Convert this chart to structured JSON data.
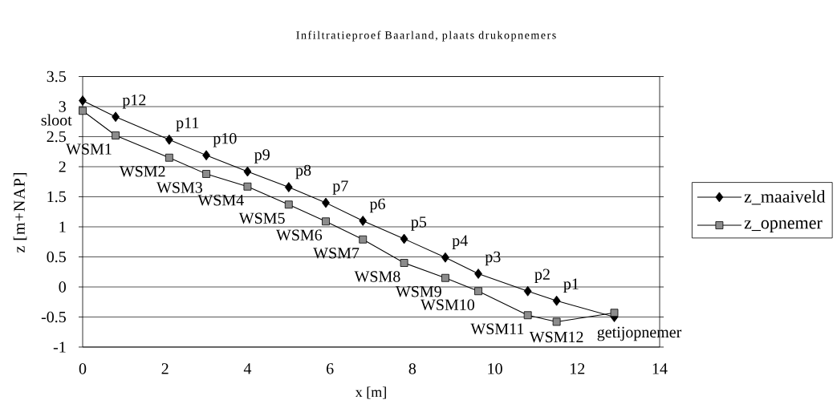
{
  "chart_data": {
    "type": "line",
    "title": "Infiltratieproef Baarland, plaats drukopnemers",
    "xlabel": "x [m]",
    "ylabel": "z [m+NAP]",
    "x": [
      0,
      0.8,
      2.1,
      3.0,
      4.0,
      5.0,
      5.9,
      6.8,
      7.8,
      8.8,
      9.6,
      10.8,
      11.5,
      12.9
    ],
    "series": [
      {
        "name": "z_maaiveld",
        "color": "#000000",
        "marker": "diamond",
        "values": [
          3.1,
          2.83,
          2.45,
          2.19,
          1.92,
          1.66,
          1.4,
          1.1,
          0.8,
          0.49,
          0.22,
          -0.07,
          -0.23,
          -0.5
        ]
      },
      {
        "name": "z_opnemer",
        "color": "#000000",
        "marker": "square",
        "values": [
          2.93,
          2.52,
          2.15,
          1.88,
          1.67,
          1.37,
          1.09,
          0.79,
          0.4,
          0.15,
          -0.07,
          -0.47,
          -0.58,
          -0.43
        ]
      }
    ],
    "xlim": [
      0,
      14
    ],
    "xticks": [
      0,
      2,
      4,
      6,
      8,
      10,
      12,
      14
    ],
    "ylim": [
      -1,
      3.5
    ],
    "yticks": [
      -1,
      -0.5,
      0,
      0.5,
      1,
      1.5,
      2,
      2.5,
      3,
      3.5
    ],
    "grid": "y",
    "legend": "right",
    "annotations": [
      {
        "text": "p12",
        "x": 0.8,
        "y": 2.83
      },
      {
        "text": "p11",
        "x": 2.1,
        "y": 2.45
      },
      {
        "text": "p10",
        "x": 3.0,
        "y": 2.19
      },
      {
        "text": "p9",
        "x": 4.0,
        "y": 1.92
      },
      {
        "text": "p8",
        "x": 5.0,
        "y": 1.66
      },
      {
        "text": "p7",
        "x": 5.9,
        "y": 1.4
      },
      {
        "text": "p6",
        "x": 6.8,
        "y": 1.1
      },
      {
        "text": "p5",
        "x": 7.8,
        "y": 0.8
      },
      {
        "text": "p4",
        "x": 8.8,
        "y": 0.49
      },
      {
        "text": "p3",
        "x": 9.6,
        "y": 0.22
      },
      {
        "text": "p2",
        "x": 10.8,
        "y": -0.07
      },
      {
        "text": "p1",
        "x": 11.5,
        "y": -0.23
      },
      {
        "text": "sloot",
        "x": 0,
        "y": 2.93
      },
      {
        "text": "WSM1",
        "x": 0.8,
        "y": 2.52
      },
      {
        "text": "WSM2",
        "x": 2.1,
        "y": 2.15
      },
      {
        "text": "WSM3",
        "x": 3.0,
        "y": 1.88
      },
      {
        "text": "WSM4",
        "x": 4.0,
        "y": 1.67
      },
      {
        "text": "WSM5",
        "x": 5.0,
        "y": 1.37
      },
      {
        "text": "WSM6",
        "x": 5.9,
        "y": 1.09
      },
      {
        "text": "WSM7",
        "x": 6.8,
        "y": 0.79
      },
      {
        "text": "WSM8",
        "x": 7.8,
        "y": 0.4
      },
      {
        "text": "WSM9",
        "x": 8.8,
        "y": 0.15
      },
      {
        "text": "WSM10",
        "x": 9.6,
        "y": -0.07
      },
      {
        "text": "WSM11",
        "x": 10.8,
        "y": -0.47
      },
      {
        "text": "WSM12",
        "x": 11.5,
        "y": -0.58
      },
      {
        "text": "getijopnemer",
        "x": 12.9,
        "y": -0.5
      }
    ]
  }
}
